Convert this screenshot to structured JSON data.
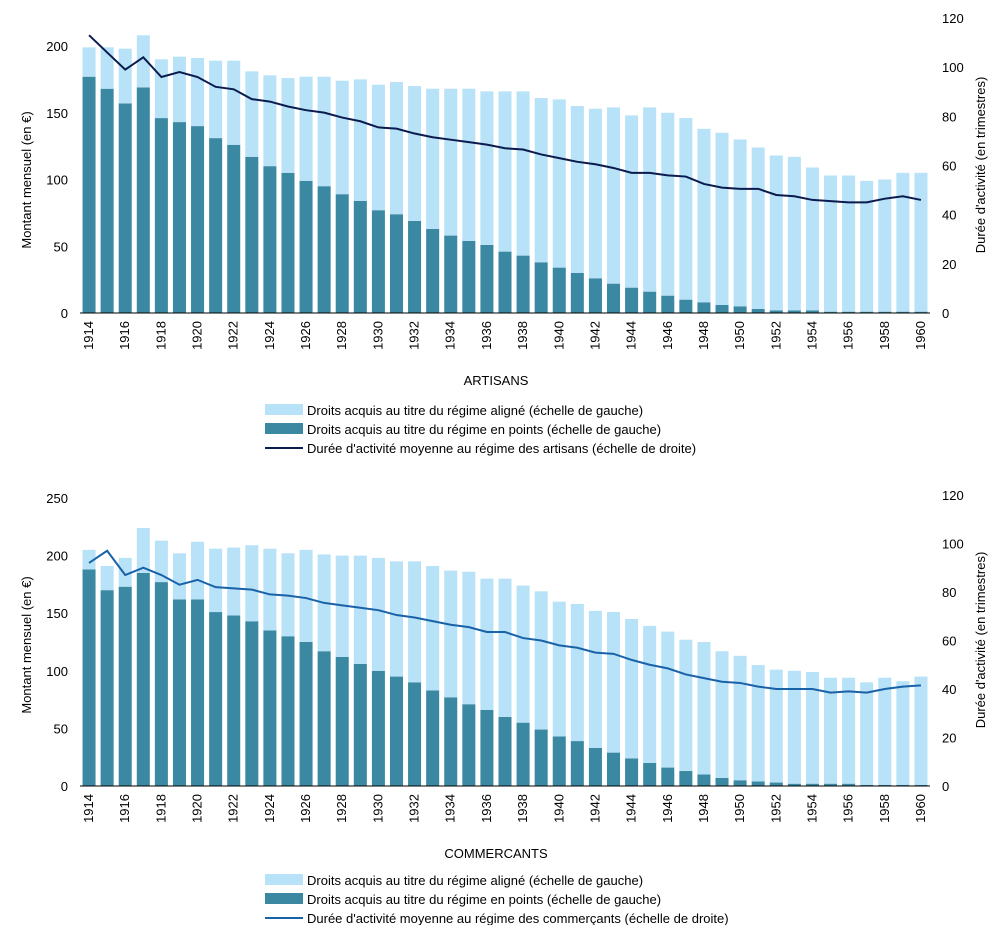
{
  "colors": {
    "aligned": "#B7E2F7",
    "points": "#3B88A2",
    "artisans_line": "#0B1B4E",
    "commercants_line": "#1A62A8",
    "axis": "#000000"
  },
  "chart_data": [
    {
      "type": "bar",
      "stacked": true,
      "title": "ARTISANS",
      "ylabel": "Montant mensuel (en €)",
      "ylabel_right": "Durée d'activité (en trimestres)",
      "ylim": [
        0,
        200
      ],
      "yticks": [
        0,
        50,
        100,
        150,
        200
      ],
      "ylim_right": [
        0,
        120
      ],
      "yticks_right": [
        0,
        20,
        40,
        60,
        80,
        100,
        120
      ],
      "grid": false,
      "legend": "bottom",
      "x": [
        1914,
        1915,
        1916,
        1917,
        1918,
        1919,
        1920,
        1921,
        1922,
        1923,
        1924,
        1925,
        1926,
        1927,
        1928,
        1929,
        1930,
        1931,
        1932,
        1933,
        1934,
        1935,
        1936,
        1937,
        1938,
        1939,
        1940,
        1941,
        1942,
        1943,
        1944,
        1945,
        1946,
        1947,
        1948,
        1949,
        1950,
        1951,
        1952,
        1953,
        1954,
        1955,
        1956,
        1957,
        1958,
        1959,
        1960
      ],
      "xtick_labels": [
        "1914",
        "1916",
        "1918",
        "1920",
        "1922",
        "1924",
        "1926",
        "1928",
        "1930",
        "1932",
        "1934",
        "1936",
        "1938",
        "1940",
        "1942",
        "1944",
        "1946",
        "1948",
        "1950",
        "1952",
        "1954",
        "1956",
        "1958",
        "1960"
      ],
      "series": [
        {
          "name": "Droits acquis au titre du régime en points (échelle de gauche)",
          "kind": "bar",
          "axis": "left",
          "values": [
            177,
            168,
            157,
            169,
            146,
            143,
            140,
            131,
            126,
            117,
            110,
            105,
            99,
            95,
            89,
            84,
            77,
            74,
            69,
            63,
            58,
            54,
            51,
            46,
            43,
            38,
            34,
            30,
            26,
            22,
            19,
            16,
            13,
            10,
            8,
            6,
            5,
            3,
            2,
            2,
            2,
            1,
            1,
            1,
            1,
            1,
            1
          ]
        },
        {
          "name": "Droits acquis au titre du régime aligné (échelle de gauche)",
          "kind": "bar",
          "axis": "left",
          "values": [
            22,
            31,
            41,
            39,
            44,
            49,
            51,
            58,
            63,
            64,
            68,
            71,
            78,
            82,
            85,
            91,
            94,
            99,
            101,
            105,
            110,
            114,
            115,
            120,
            123,
            123,
            126,
            125,
            127,
            132,
            129,
            138,
            137,
            136,
            130,
            129,
            125,
            121,
            116,
            115,
            107,
            102,
            102,
            98,
            99,
            104,
            104
          ]
        },
        {
          "name": "Durée d'activité moyenne au régime des artisans (échelle de droite)",
          "kind": "line",
          "axis": "right",
          "values": [
            113,
            106,
            99,
            104,
            96,
            98,
            96,
            92,
            91,
            87,
            86,
            84,
            82.5,
            81.5,
            79.5,
            78,
            75.5,
            75,
            73,
            71.5,
            70.5,
            69.5,
            68.5,
            67,
            66.5,
            64.5,
            63,
            61.5,
            60.5,
            59,
            57,
            57,
            56,
            55.5,
            52.5,
            51,
            50.5,
            50.5,
            48,
            47.5,
            46,
            45.5,
            45,
            45,
            46.5,
            47.5,
            46
          ]
        }
      ]
    },
    {
      "type": "bar",
      "stacked": true,
      "title": "COMMERCANTS",
      "ylabel": "Montant mensuel (en €)",
      "ylabel_right": "Durée d'activité (en trimestres)",
      "ylim": [
        0,
        250
      ],
      "yticks": [
        0,
        50,
        100,
        150,
        200,
        250
      ],
      "ylim_right": [
        0,
        120
      ],
      "yticks_right": [
        0,
        20,
        40,
        60,
        80,
        100,
        120
      ],
      "grid": false,
      "legend": "bottom",
      "x": [
        1914,
        1915,
        1916,
        1917,
        1918,
        1919,
        1920,
        1921,
        1922,
        1923,
        1924,
        1925,
        1926,
        1927,
        1928,
        1929,
        1930,
        1931,
        1932,
        1933,
        1934,
        1935,
        1936,
        1937,
        1938,
        1939,
        1940,
        1941,
        1942,
        1943,
        1944,
        1945,
        1946,
        1947,
        1948,
        1949,
        1950,
        1951,
        1952,
        1953,
        1954,
        1955,
        1956,
        1957,
        1958,
        1959,
        1960
      ],
      "xtick_labels": [
        "1914",
        "1916",
        "1918",
        "1920",
        "1922",
        "1924",
        "1926",
        "1928",
        "1930",
        "1932",
        "1934",
        "1936",
        "1938",
        "1940",
        "1942",
        "1944",
        "1946",
        "1948",
        "1950",
        "1952",
        "1954",
        "1956",
        "1958",
        "1960"
      ],
      "series": [
        {
          "name": "Droits acquis au titre du régime en points (échelle de gauche)",
          "kind": "bar",
          "axis": "left",
          "values": [
            188,
            170,
            173,
            185,
            177,
            162,
            162,
            151,
            148,
            143,
            135,
            130,
            125,
            117,
            112,
            106,
            100,
            95,
            90,
            83,
            77,
            71,
            66,
            60,
            55,
            49,
            43,
            39,
            33,
            29,
            24,
            20,
            16,
            13,
            10,
            7,
            5,
            4,
            3,
            2,
            2,
            2,
            2,
            1,
            1,
            1,
            1
          ]
        },
        {
          "name": "Droits acquis au titre du régime aligné (échelle de gauche)",
          "kind": "bar",
          "axis": "left",
          "values": [
            17,
            21,
            25,
            39,
            36,
            40,
            50,
            55,
            59,
            66,
            71,
            72,
            80,
            84,
            88,
            94,
            98,
            100,
            105,
            108,
            110,
            115,
            114,
            120,
            119,
            120,
            117,
            119,
            119,
            122,
            121,
            119,
            118,
            114,
            115,
            110,
            108,
            101,
            98,
            98,
            97,
            92,
            92,
            89,
            93,
            90,
            94
          ]
        },
        {
          "name": "Durée d'activité moyenne au régime des commerçants (échelle de droite)",
          "kind": "line",
          "axis": "right",
          "values": [
            92,
            97,
            87,
            90,
            87,
            83,
            85,
            82,
            81.5,
            81,
            79,
            78.5,
            77.5,
            75.5,
            74.5,
            73.5,
            72.5,
            70.5,
            69.5,
            68,
            66.5,
            65.5,
            63.5,
            63.5,
            61,
            60,
            58,
            57,
            55,
            54.5,
            52,
            50,
            48.5,
            46,
            44.5,
            43,
            42.5,
            41,
            40,
            40,
            40,
            38.5,
            39,
            38.5,
            40,
            41,
            41.5
          ]
        }
      ]
    }
  ]
}
